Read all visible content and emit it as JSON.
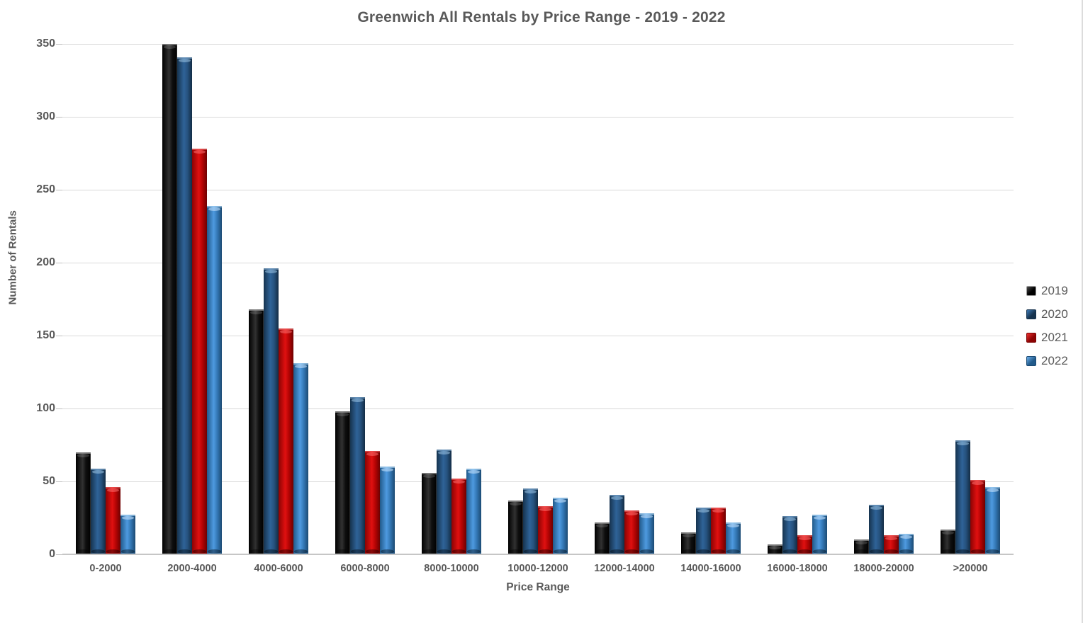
{
  "title": "Greenwich All Rentals by Price Range  -  2019 - 2022",
  "chart_data": {
    "type": "bar",
    "title": "Greenwich All Rentals by Price Range  -  2019 - 2022",
    "xlabel": "Price Range",
    "ylabel": "Number of Rentals",
    "ylim": [
      0,
      350
    ],
    "ytick_step": 50,
    "yticks": [
      0,
      50,
      100,
      150,
      200,
      250,
      300,
      350
    ],
    "grid": true,
    "legend_position": "right",
    "categories": [
      "0-2000",
      "2000-4000",
      "4000-6000",
      "6000-8000",
      "8000-10000",
      "10000-12000",
      "12000-14000",
      "14000-16000",
      "16000-18000",
      "18000-20000",
      ">20000"
    ],
    "series": [
      {
        "name": "2019",
        "color": "#0d0d0d",
        "values": [
          70,
          350,
          168,
          98,
          56,
          37,
          22,
          15,
          7,
          10,
          17
        ]
      },
      {
        "name": "2020",
        "color": "#24598e",
        "values": [
          59,
          341,
          196,
          108,
          72,
          45,
          41,
          32,
          26,
          34,
          78
        ]
      },
      {
        "name": "2021",
        "color": "#c40b0b",
        "values": [
          46,
          278,
          155,
          71,
          52,
          33,
          30,
          32,
          13,
          13,
          51
        ]
      },
      {
        "name": "2022",
        "color": "#3b86c8",
        "values": [
          27,
          239,
          131,
          60,
          59,
          39,
          28,
          22,
          27,
          14,
          46
        ]
      }
    ]
  },
  "colors": {
    "background": "#ffffff",
    "gridline": "#d9d9d9",
    "axis_text": "#595959",
    "series_2019": "#0d0d0d",
    "series_2020": "#24598e",
    "series_2021": "#c40b0b",
    "series_2022": "#3b86c8"
  }
}
